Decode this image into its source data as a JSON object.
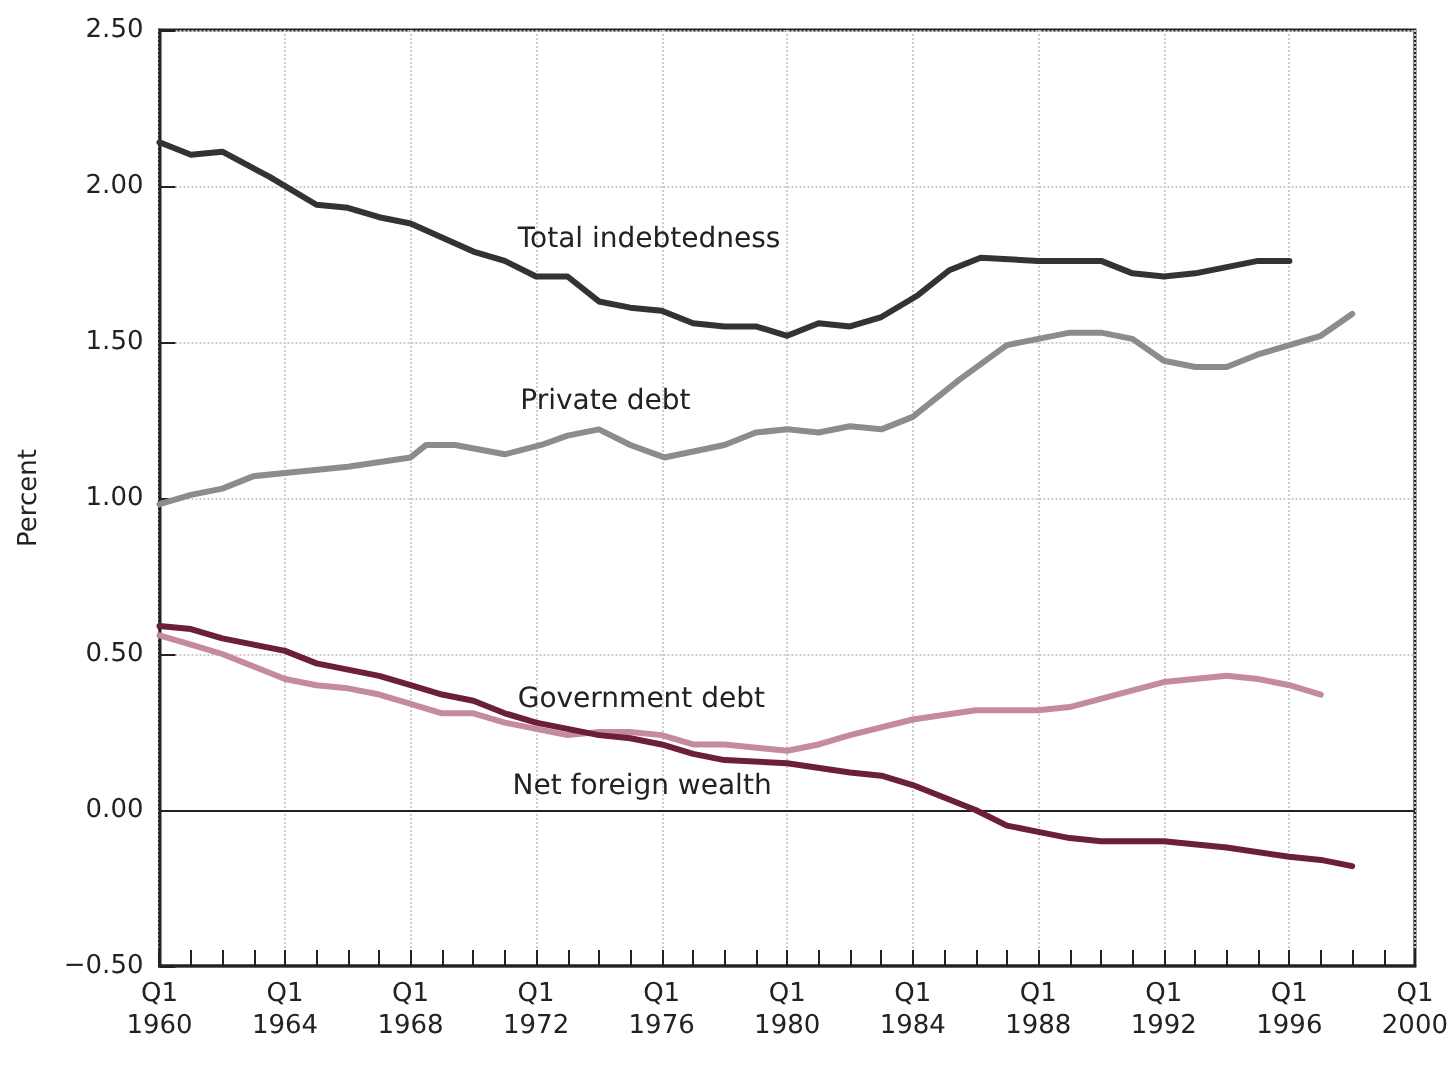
{
  "chart_data": {
    "type": "line",
    "ylabel": "Percent",
    "xlim": [
      "1960-01",
      "2000-01"
    ],
    "xticks": [
      {
        "value": "1960-01",
        "label": "Q1\n1960"
      },
      {
        "value": "1961-01",
        "label": null
      },
      {
        "value": "1962-01",
        "label": null
      },
      {
        "value": "1963-01",
        "label": null
      },
      {
        "value": "1964-01",
        "label": "Q1\n1964"
      },
      {
        "value": "1965-01",
        "label": null
      },
      {
        "value": "1966-01",
        "label": null
      },
      {
        "value": "1967-01",
        "label": null
      },
      {
        "value": "1968-01",
        "label": "Q1\n1968"
      },
      {
        "value": "1969-01",
        "label": null
      },
      {
        "value": "1970-01",
        "label": null
      },
      {
        "value": "1971-01",
        "label": null
      },
      {
        "value": "1972-01",
        "label": "Q1\n1972"
      },
      {
        "value": "1973-01",
        "label": null
      },
      {
        "value": "1974-01",
        "label": null
      },
      {
        "value": "1975-01",
        "label": null
      },
      {
        "value": "1976-01",
        "label": "Q1\n1976"
      },
      {
        "value": "1977-01",
        "label": null
      },
      {
        "value": "1978-01",
        "label": null
      },
      {
        "value": "1979-01",
        "label": null
      },
      {
        "value": "1980-01",
        "label": "Q1\n1980"
      },
      {
        "value": "1981-01",
        "label": null
      },
      {
        "value": "1982-01",
        "label": null
      },
      {
        "value": "1983-01",
        "label": null
      },
      {
        "value": "1984-01",
        "label": "Q1\n1984"
      },
      {
        "value": "1985-01",
        "label": null
      },
      {
        "value": "1986-01",
        "label": null
      },
      {
        "value": "1987-01",
        "label": null
      },
      {
        "value": "1988-01",
        "label": "Q1\n1988"
      },
      {
        "value": "1989-01",
        "label": null
      },
      {
        "value": "1990-01",
        "label": null
      },
      {
        "value": "1991-01",
        "label": null
      },
      {
        "value": "1992-01",
        "label": "Q1\n1992"
      },
      {
        "value": "1993-01",
        "label": null
      },
      {
        "value": "1994-01",
        "label": null
      },
      {
        "value": "1995-01",
        "label": null
      },
      {
        "value": "1996-01",
        "label": "Q1\n1996"
      },
      {
        "value": "1997-01",
        "label": null
      },
      {
        "value": "1998-01",
        "label": null
      },
      {
        "value": "1999-01",
        "label": null
      },
      {
        "value": "2000-01",
        "label": "Q1\n2000"
      }
    ],
    "ylim": [
      -0.5,
      2.5
    ],
    "yticks": [
      {
        "value": -0.5,
        "label": "−0.50"
      },
      {
        "value": 0,
        "label": "0.00"
      },
      {
        "value": 0.5,
        "label": "0.50"
      },
      {
        "value": 1,
        "label": "1.00"
      },
      {
        "value": 1.5,
        "label": "1.50"
      },
      {
        "value": 2,
        "label": "2.00"
      },
      {
        "value": 2.5,
        "label": "2.50"
      }
    ],
    "grid": true,
    "marker": "none",
    "line_style": "solid",
    "ref_lines": [
      {
        "axis": "y",
        "value": 0,
        "label": null,
        "color": "#222222"
      }
    ],
    "series": [
      {
        "name": "Total indebtedness",
        "color": "#333333",
        "x": [
          "1960-01",
          "1961-01",
          "1962-01",
          "1963-07",
          "1965-01",
          "1966-01",
          "1967-01",
          "1968-01",
          "1970-01",
          "1971-01",
          "1972-01",
          "1973-01",
          "1974-01",
          "1975-01",
          "1976-01",
          "1977-01",
          "1978-01",
          "1979-01",
          "1980-01",
          "1981-01",
          "1982-01",
          "1983-01",
          "1984-03",
          "1985-03",
          "1986-03",
          "1988-01",
          "1990-01",
          "1991-01",
          "1992-01",
          "1993-01",
          "1994-01",
          "1995-01",
          "1996-01"
        ],
        "values": [
          2.14,
          2.1,
          2.11,
          2.03,
          1.94,
          1.93,
          1.9,
          1.88,
          1.79,
          1.76,
          1.71,
          1.71,
          1.63,
          1.61,
          1.6,
          1.56,
          1.55,
          1.55,
          1.52,
          1.56,
          1.55,
          1.58,
          1.65,
          1.73,
          1.77,
          1.76,
          1.76,
          1.72,
          1.71,
          1.72,
          1.74,
          1.76,
          1.76
        ]
      },
      {
        "name": "Private debt",
        "color": "#8c8c8c",
        "x": [
          "1960-01",
          "1961-01",
          "1962-01",
          "1963-01",
          "1964-01",
          "1966-01",
          "1968-01",
          "1968-07",
          "1969-06",
          "1971-01",
          "1972-03",
          "1973-01",
          "1974-01",
          "1975-01",
          "1976-02",
          "1978-01",
          "1979-01",
          "1980-01",
          "1981-01",
          "1982-01",
          "1983-01",
          "1984-01",
          "1985-07",
          "1987-01",
          "1988-01",
          "1989-01",
          "1990-01",
          "1991-01",
          "1992-01",
          "1993-01",
          "1994-01",
          "1995-01",
          "1996-01",
          "1997-01",
          "1998-01"
        ],
        "values": [
          0.98,
          1.01,
          1.03,
          1.07,
          1.08,
          1.1,
          1.13,
          1.17,
          1.17,
          1.14,
          1.17,
          1.2,
          1.22,
          1.17,
          1.13,
          1.17,
          1.21,
          1.22,
          1.21,
          1.23,
          1.22,
          1.26,
          1.38,
          1.49,
          1.51,
          1.53,
          1.53,
          1.51,
          1.44,
          1.42,
          1.42,
          1.46,
          1.49,
          1.52,
          1.59
        ]
      },
      {
        "name": "Government debt",
        "color": "#c48a9e",
        "x": [
          "1960-01",
          "1961-01",
          "1962-01",
          "1963-01",
          "1964-01",
          "1965-01",
          "1966-01",
          "1967-01",
          "1968-01",
          "1969-01",
          "1970-01",
          "1971-01",
          "1972-01",
          "1973-01",
          "1974-01",
          "1975-01",
          "1976-01",
          "1977-01",
          "1978-01",
          "1980-01",
          "1981-01",
          "1982-01",
          "1984-01",
          "1986-01",
          "1988-01",
          "1989-01",
          "1990-07",
          "1992-01",
          "1994-01",
          "1995-01",
          "1996-01",
          "1997-01"
        ],
        "values": [
          0.56,
          0.53,
          0.5,
          0.46,
          0.42,
          0.4,
          0.39,
          0.37,
          0.34,
          0.31,
          0.31,
          0.28,
          0.26,
          0.24,
          0.25,
          0.25,
          0.24,
          0.21,
          0.21,
          0.19,
          0.21,
          0.24,
          0.29,
          0.32,
          0.32,
          0.33,
          0.37,
          0.41,
          0.43,
          0.42,
          0.4,
          0.37
        ]
      },
      {
        "name": "Net foreign wealth",
        "color": "#6b1f3a",
        "x": [
          "1960-01",
          "1961-01",
          "1962-01",
          "1963-01",
          "1964-01",
          "1965-01",
          "1966-01",
          "1967-01",
          "1968-01",
          "1969-01",
          "1970-01",
          "1971-01",
          "1972-01",
          "1973-01",
          "1974-01",
          "1975-01",
          "1976-01",
          "1977-01",
          "1978-01",
          "1980-01",
          "1982-01",
          "1983-01",
          "1984-01",
          "1986-01",
          "1987-01",
          "1988-01",
          "1989-01",
          "1990-01",
          "1992-01",
          "1994-01",
          "1996-01",
          "1997-01",
          "1998-01"
        ],
        "values": [
          0.59,
          0.58,
          0.55,
          0.53,
          0.51,
          0.47,
          0.45,
          0.43,
          0.4,
          0.37,
          0.35,
          0.31,
          0.28,
          0.26,
          0.24,
          0.23,
          0.21,
          0.18,
          0.16,
          0.15,
          0.12,
          0.11,
          0.08,
          0.0,
          -0.05,
          -0.07,
          -0.09,
          -0.1,
          -0.1,
          -0.12,
          -0.15,
          -0.16,
          -0.18
        ]
      }
    ]
  }
}
